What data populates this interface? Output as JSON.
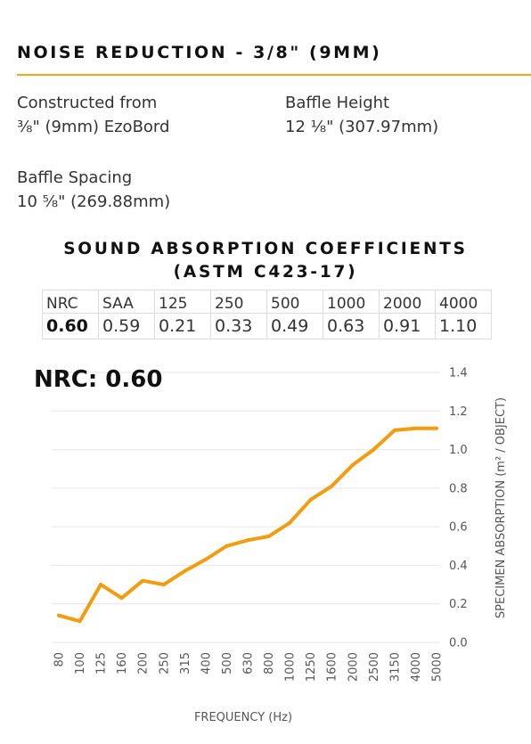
{
  "header": {
    "title": "NOISE  REDUCTION - 3/8\" (9MM)"
  },
  "specs": {
    "constructed_label": "Constructed from",
    "constructed_value": "⅜\" (9mm) EzoBord",
    "height_label": "Baffle Height",
    "height_value": "12 ⅛\" (307.97mm)",
    "spacing_label": "Baffle Spacing",
    "spacing_value": "10 ⅝\" (269.88mm)"
  },
  "coefficients": {
    "title_line1": "SOUND ABSORPTION COEFFICIENTS",
    "title_line2": "(ASTM C423-17)",
    "headers": [
      "NRC",
      "SAA",
      "125",
      "250",
      "500",
      "1000",
      "2000",
      "4000"
    ],
    "values": [
      "0.60",
      "0.59",
      "0.21",
      "0.33",
      "0.49",
      "0.63",
      "0.91",
      "1.10"
    ]
  },
  "nrc_label": "NRC: 0.60",
  "colors": {
    "accent": "#f0a818",
    "line": "#f29c0f",
    "grid": "#e6e6e6"
  },
  "chart_data": {
    "type": "line",
    "xlabel": "FREQUENCY (Hz)",
    "ylabel": "SPECIMEN ABSORPTION (m² / OBJECT)",
    "ylim": [
      0,
      1.4
    ],
    "y_ticks": [
      "0.0",
      "0.2",
      "0.4",
      "0.6",
      "0.8",
      "1.0",
      "1.2",
      "1.4"
    ],
    "y_axis_position": "right",
    "grid": true,
    "categories": [
      "80",
      "100",
      "125",
      "160",
      "200",
      "250",
      "315",
      "400",
      "500",
      "630",
      "800",
      "1000",
      "1250",
      "1600",
      "2000",
      "2500",
      "3150",
      "4000",
      "5000"
    ],
    "series": [
      {
        "values": [
          0.14,
          0.11,
          0.3,
          0.23,
          0.32,
          0.3,
          0.37,
          0.43,
          0.5,
          0.53,
          0.55,
          0.62,
          0.74,
          0.81,
          0.92,
          1.0,
          1.1,
          1.11,
          1.11
        ]
      }
    ]
  }
}
